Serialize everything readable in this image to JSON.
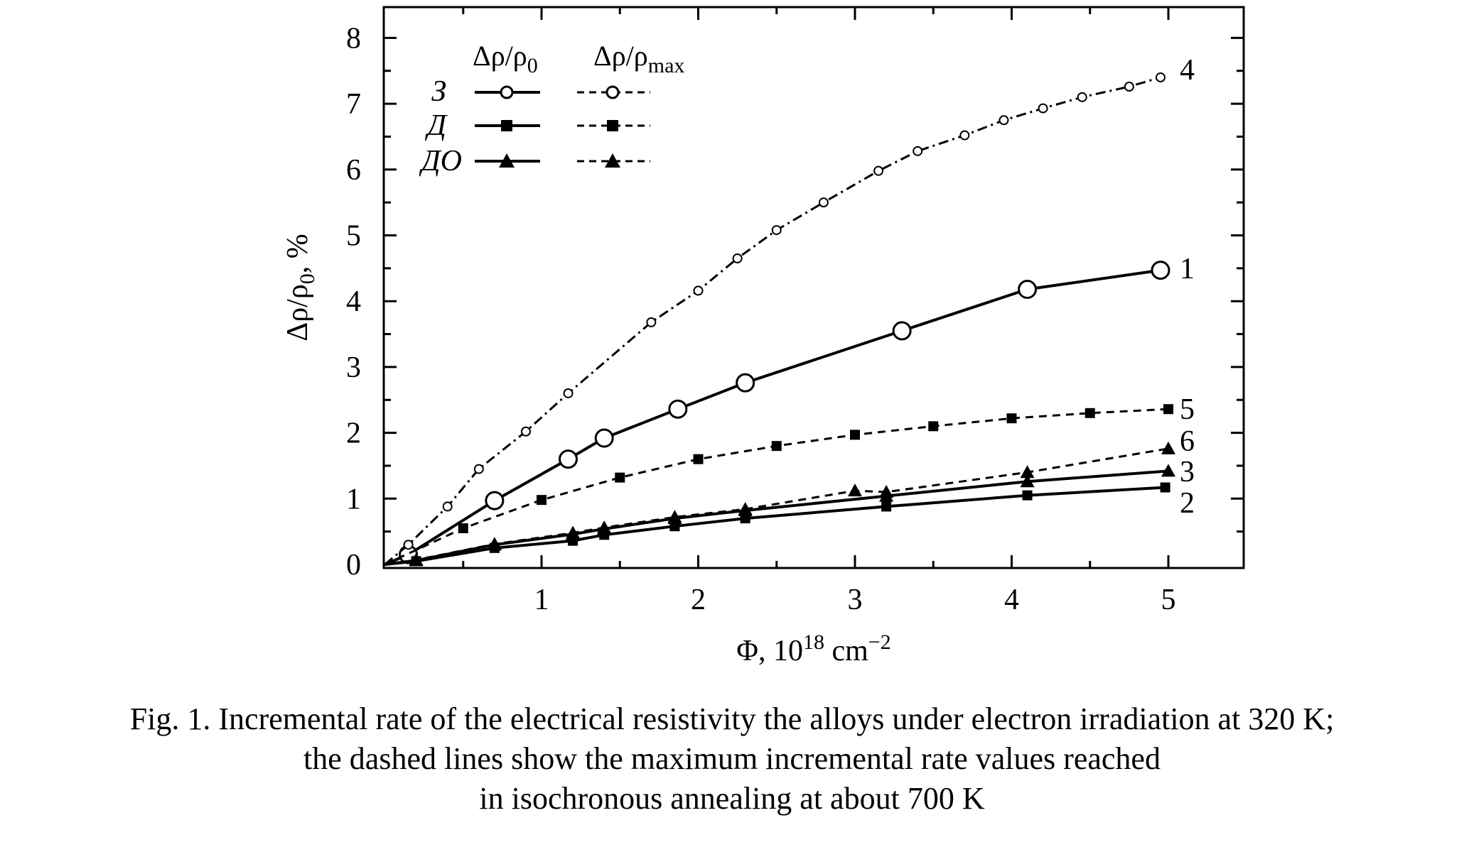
{
  "chart_data": {
    "type": "line",
    "xlabel": "Φ, 10",
    "xlabel_sup": "18",
    "xlabel_unit": " cm",
    "xlabel_unit_sup": "−2",
    "ylabel": "Δρ/ρ",
    "ylabel_sub": "0",
    "ylabel_suffix": ", %",
    "xlim": [
      0,
      5.5
    ],
    "ylim": [
      0,
      8.4
    ],
    "x_ticks": [
      1,
      2,
      3,
      4,
      5
    ],
    "y_ticks": [
      0,
      1,
      2,
      3,
      4,
      5,
      6,
      7,
      8
    ],
    "grid": false,
    "legend_position": "top-left",
    "legend": {
      "col1_main": "Δρ/ρ",
      "col1_sub": "0",
      "col2_main": "Δρ/ρ",
      "col2_sub": "max",
      "rows": [
        "З",
        "Д",
        "ДО"
      ]
    },
    "series": [
      {
        "label": "1",
        "marker": "open-circle",
        "line": "solid",
        "x": [
          0,
          0.15,
          0.7,
          1.17,
          1.4,
          1.87,
          2.3,
          3.3,
          4.1,
          4.95
        ],
        "y": [
          0,
          0.15,
          0.97,
          1.6,
          1.92,
          2.36,
          2.76,
          3.55,
          4.18,
          4.47
        ]
      },
      {
        "label": "2",
        "marker": "square",
        "line": "solid",
        "x": [
          0,
          0.2,
          0.7,
          1.2,
          1.4,
          1.85,
          2.3,
          3.2,
          4.1,
          4.98
        ],
        "y": [
          0,
          0.05,
          0.25,
          0.36,
          0.45,
          0.58,
          0.7,
          0.88,
          1.05,
          1.17
        ]
      },
      {
        "label": "3",
        "marker": "triangle",
        "line": "solid",
        "x": [
          0,
          0.2,
          0.7,
          1.2,
          1.4,
          1.85,
          2.3,
          3.2,
          4.1,
          5.0
        ],
        "y": [
          0,
          0.06,
          0.3,
          0.46,
          0.54,
          0.7,
          0.82,
          1.04,
          1.26,
          1.42
        ]
      },
      {
        "label": "4",
        "marker": "small-open-circle",
        "line": "dash-dot",
        "x": [
          0,
          0.15,
          0.4,
          0.6,
          0.9,
          1.17,
          1.7,
          2.0,
          2.25,
          2.5,
          2.8,
          3.15,
          3.4,
          3.7,
          3.95,
          4.2,
          4.45,
          4.75,
          4.95
        ],
        "y": [
          0,
          0.3,
          0.88,
          1.45,
          2.02,
          2.6,
          3.68,
          4.16,
          4.65,
          5.08,
          5.5,
          5.98,
          6.28,
          6.52,
          6.75,
          6.93,
          7.1,
          7.26,
          7.4
        ]
      },
      {
        "label": "5",
        "marker": "square",
        "line": "dashed",
        "x": [
          0,
          0.5,
          1.0,
          1.5,
          2.0,
          2.5,
          3.0,
          3.5,
          4.0,
          4.5,
          5.0
        ],
        "y": [
          0,
          0.55,
          0.98,
          1.32,
          1.6,
          1.8,
          1.97,
          2.1,
          2.22,
          2.3,
          2.36
        ]
      },
      {
        "label": "6",
        "marker": "triangle",
        "line": "dashed",
        "x": [
          0,
          0.2,
          0.7,
          1.2,
          1.4,
          1.85,
          2.3,
          3.0,
          3.2,
          4.1,
          5.0
        ],
        "y": [
          0,
          0.07,
          0.31,
          0.48,
          0.56,
          0.72,
          0.84,
          1.12,
          1.1,
          1.4,
          1.76
        ]
      }
    ]
  },
  "caption": {
    "line1": "Fig. 1. Incremental rate of the electrical resistivity the alloys under electron irradiation at 320 K;",
    "line2": "the dashed lines show the maximum incremental rate values reached",
    "line3": "in isochronous annealing at about 700 K"
  }
}
